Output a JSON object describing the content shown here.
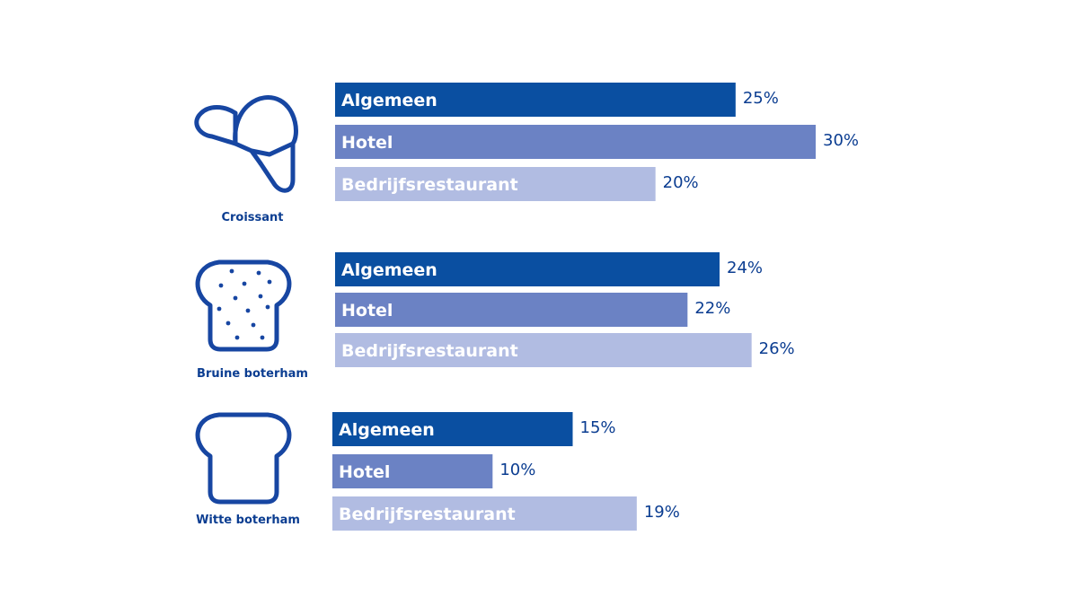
{
  "chart_data": {
    "type": "bar",
    "orientation": "horizontal",
    "value_unit": "%",
    "xlim": [
      0,
      30
    ],
    "grid": false,
    "series_colors": {
      "Algemeen": "#0a4fa1",
      "Hotel": "#6b82c4",
      "Bedrijfsrestaurant": "#b1bce2"
    },
    "label_colors": {
      "Algemeen": "#ffffff",
      "Hotel": "#ffffff",
      "Bedrijfsrestaurant": "#ffffff"
    },
    "groups": [
      {
        "name": "Croissant",
        "icon": "croissant-icon",
        "bars": [
          {
            "series": "Algemeen",
            "label": "Algemeen",
            "value": 25,
            "value_label": "25%"
          },
          {
            "series": "Hotel",
            "label": "Hotel",
            "value": 30,
            "value_label": "30%"
          },
          {
            "series": "Bedrijfsrestaurant",
            "label": "Bedrijfsrestaurant",
            "value": 20,
            "value_label": "20%"
          }
        ]
      },
      {
        "name": "Bruine boterham",
        "icon": "brown-bread-icon",
        "bars": [
          {
            "series": "Algemeen",
            "label": "Algemeen",
            "value": 24,
            "value_label": "24%"
          },
          {
            "series": "Hotel",
            "label": "Hotel",
            "value": 22,
            "value_label": "22%"
          },
          {
            "series": "Bedrijfsrestaurant",
            "label": "Bedrijfsrestaurant",
            "value": 26,
            "value_label": "26%"
          }
        ]
      },
      {
        "name": "Witte boterham",
        "icon": "white-bread-icon",
        "bars": [
          {
            "series": "Algemeen",
            "label": "Algemeen",
            "value": 15,
            "value_label": "15%"
          },
          {
            "series": "Hotel",
            "label": "Hotel",
            "value": 10,
            "value_label": "10%"
          },
          {
            "series": "Bedrijfsrestaurant",
            "label": "Bedrijfsrestaurant",
            "value": 19,
            "value_label": "19%"
          }
        ]
      }
    ]
  }
}
